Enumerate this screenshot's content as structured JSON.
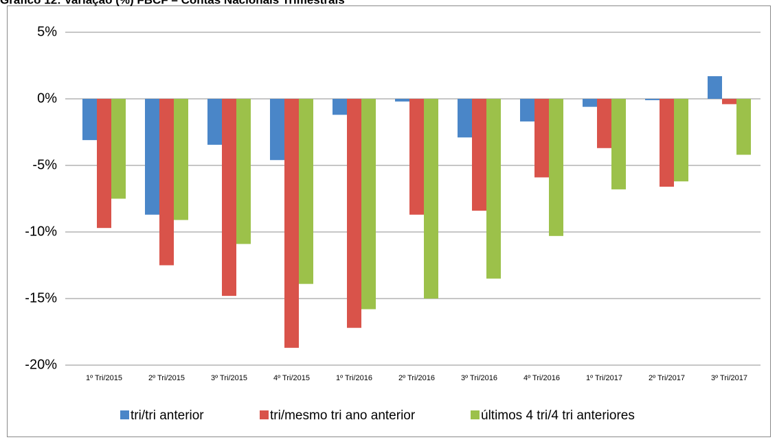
{
  "chart_data": {
    "type": "bar",
    "title": "Gráfico 12: Variação (%) FBCF – Contas Nacionais Trimestrais",
    "categories": [
      "1º Tri/2015",
      "2º Tri/2015",
      "3º Tri/2015",
      "4º Tri/2015",
      "1º Tri/2016",
      "2º Tri/2016",
      "3º Tri/2016",
      "4º Tri/2016",
      "1º Tri/2017",
      "2º Tri/2017",
      "3º Tri/2017"
    ],
    "series": [
      {
        "name": "tri/tri anterior",
        "color": "#4a86c8",
        "values": [
          -3.1,
          -8.7,
          -3.45,
          -4.6,
          -1.2,
          -0.2,
          -2.9,
          -1.7,
          -0.6,
          -0.1,
          1.7
        ]
      },
      {
        "name": "tri/mesmo tri ano anterior",
        "color": "#d9534a",
        "values": [
          -9.7,
          -12.5,
          -14.8,
          -18.7,
          -17.2,
          -8.7,
          -8.4,
          -5.9,
          -3.7,
          -6.6,
          -0.4
        ]
      },
      {
        "name": "últimos 4 tri/4 tri anteriores",
        "color": "#9cc14a",
        "values": [
          -7.5,
          -9.1,
          -10.9,
          -13.9,
          -15.8,
          -15.0,
          -13.5,
          -10.3,
          -6.8,
          -6.2,
          -4.2
        ]
      }
    ],
    "ylim": [
      -20,
      5
    ],
    "yticks": [
      {
        "value": -20,
        "label": "-20%"
      },
      {
        "value": -15,
        "label": "-15%"
      },
      {
        "value": -10,
        "label": "-10%"
      },
      {
        "value": -5,
        "label": "-5%"
      },
      {
        "value": 0,
        "label": "0%"
      },
      {
        "value": 5,
        "label": "5%"
      }
    ],
    "grid": true,
    "legend": "bottom"
  }
}
